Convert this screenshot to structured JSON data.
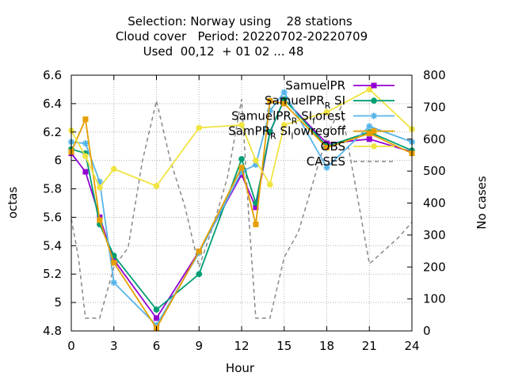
{
  "chart_data": {
    "type": "line",
    "title_lines": [
      "Selection: Norway using    28 stations",
      "Cloud cover   Period: 20220702-20220709",
      "Used  00,12  + 01 02 ... 48"
    ],
    "xlabel": "Hour",
    "ylabel": "octas",
    "y2label": "No cases",
    "xlim": [
      0,
      24
    ],
    "ylim": [
      4.8,
      6.6
    ],
    "y2lim": [
      0,
      800
    ],
    "xticks": [
      "0",
      "3",
      "6",
      "9",
      "12",
      "15",
      "18",
      "21",
      "24"
    ],
    "yticks": [
      "4.8",
      "5",
      "5.2",
      "5.4",
      "5.6",
      "5.8",
      "6",
      "6.2",
      "6.4",
      "6.6"
    ],
    "y2ticks": [
      "0",
      "100",
      "200",
      "300",
      "400",
      "500",
      "600",
      "700",
      "800"
    ],
    "grid": true,
    "legend_position": "top-right",
    "series": [
      {
        "name": "SamuelPR",
        "legend_label": "SamuelPR",
        "color": "#9400d3",
        "marker": "square",
        "axis": "y",
        "x": [
          0,
          1,
          2,
          3,
          6,
          9,
          12,
          13,
          14,
          15,
          18,
          21,
          24
        ],
        "y": [
          6.05,
          5.92,
          5.6,
          5.3,
          4.89,
          5.36,
          5.9,
          5.67,
          6.2,
          6.43,
          6.12,
          6.15,
          6.06
        ]
      },
      {
        "name": "SamuelPR_R SI",
        "legend_label": "SamuelPR",
        "legend_sub": "R",
        "legend_after": " SI",
        "color": "#009e73",
        "marker": "circle",
        "axis": "y",
        "x": [
          0,
          1,
          2,
          3,
          6,
          9,
          12,
          13,
          14,
          15,
          18,
          21,
          24
        ],
        "y": [
          6.08,
          6.05,
          5.55,
          5.33,
          4.95,
          5.2,
          6.01,
          5.7,
          6.2,
          6.43,
          6.1,
          6.2,
          6.07
        ]
      },
      {
        "name": "SamuelPR_R SI_forest",
        "legend_label": "SamuelPR",
        "legend_sub": "R",
        "legend_after": " SI",
        "legend_sub2": "f",
        "legend_after2": "orest",
        "color": "#56b4e9",
        "marker": "star",
        "axis": "y",
        "x": [
          0,
          1,
          2,
          3,
          6,
          9,
          12,
          13,
          14,
          15,
          18,
          21,
          24
        ],
        "y": [
          6.13,
          6.12,
          5.85,
          5.14,
          4.84,
          5.35,
          5.92,
          5.97,
          6.35,
          6.48,
          5.95,
          6.24,
          6.13
        ]
      },
      {
        "name": "SamPR_R SI_lowregoff",
        "legend_label": "SamPR",
        "legend_sub": "R",
        "legend_after": " SI",
        "legend_sub2": "l",
        "legend_after2": "owregoff",
        "color": "#e69f00",
        "marker": "square",
        "axis": "y",
        "x": [
          0,
          1,
          2,
          3,
          6,
          9,
          12,
          13,
          14,
          15,
          18,
          21,
          24
        ],
        "y": [
          6.06,
          6.29,
          5.58,
          5.28,
          4.82,
          5.36,
          5.95,
          5.55,
          6.42,
          6.4,
          6.09,
          6.19,
          6.05
        ]
      },
      {
        "name": "OBS",
        "legend_label": "OBS",
        "color": "#f0e442",
        "marker": "circle",
        "axis": "y",
        "x": [
          0,
          1,
          2,
          3,
          6,
          9,
          12,
          13,
          14,
          15,
          18,
          21,
          24
        ],
        "y": [
          6.21,
          6.03,
          5.81,
          5.94,
          5.82,
          6.23,
          6.25,
          6.0,
          5.83,
          6.25,
          6.34,
          6.5,
          6.22
        ]
      },
      {
        "name": "CASES",
        "legend_label": "CASES",
        "color": "#888888",
        "dashed": true,
        "axis": "y2",
        "x": [
          0,
          0.5,
          1,
          2,
          3,
          4,
          5,
          6,
          7,
          8,
          9,
          10,
          11,
          12,
          12.5,
          13,
          14,
          15,
          16,
          17,
          18,
          19,
          20,
          21,
          22,
          23,
          24
        ],
        "y": [
          350,
          230,
          40,
          40,
          200,
          260,
          530,
          720,
          530,
          390,
          200,
          330,
          480,
          725,
          360,
          40,
          40,
          230,
          310,
          460,
          610,
          700,
          460,
          210,
          250,
          290,
          340
        ]
      }
    ]
  }
}
